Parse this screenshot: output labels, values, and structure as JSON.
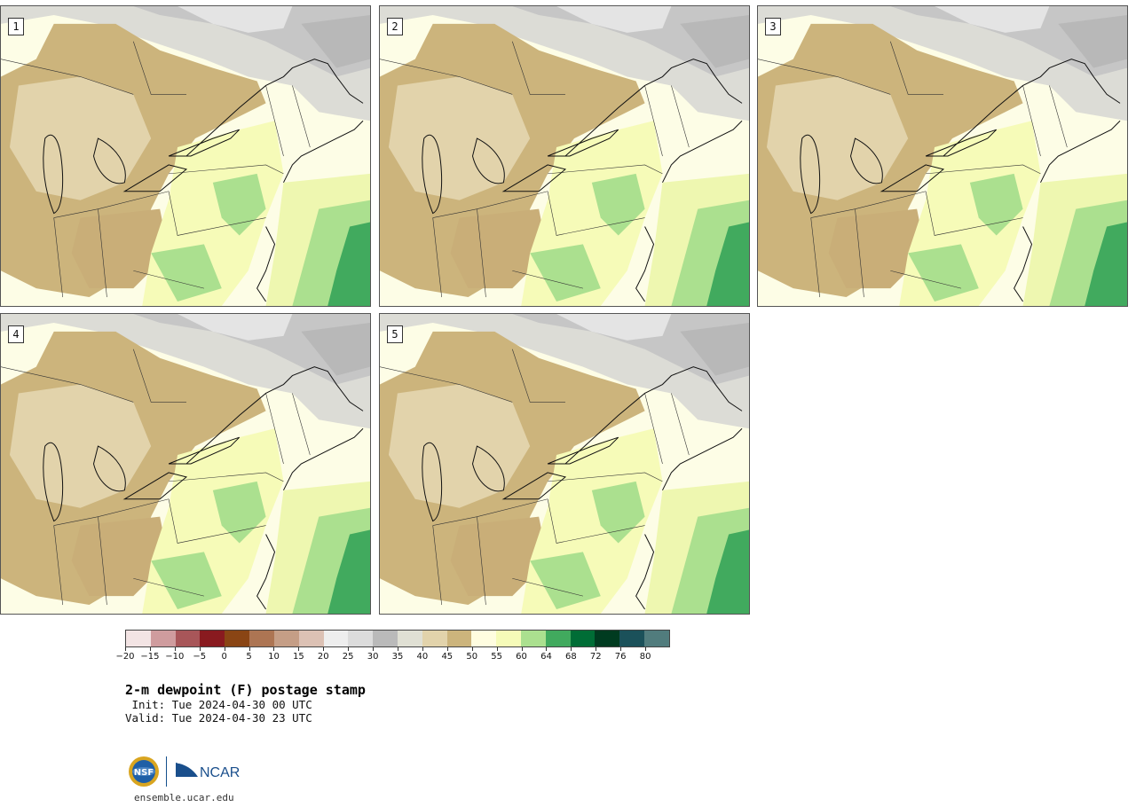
{
  "panels": [
    {
      "label": "1"
    },
    {
      "label": "2"
    },
    {
      "label": "3"
    },
    {
      "label": "4"
    },
    {
      "label": "5"
    }
  ],
  "colorbar": {
    "colors": [
      "#f3e4e4",
      "#cf9c9e",
      "#a85659",
      "#891a1f",
      "#8a4514",
      "#ad7553",
      "#c59e86",
      "#dcc1b4",
      "#eeeeee",
      "#dcdcdc",
      "#bababa",
      "#e0e0d4",
      "#e2d3ab",
      "#ccb47c",
      "#fffde0",
      "#f6fbb8",
      "#abe08f",
      "#41aa5e",
      "#006d36",
      "#003b20",
      "#1b515a",
      "#517c7d"
    ],
    "labels": [
      "−20",
      "−15",
      "−10",
      "−5",
      "0",
      "5",
      "10",
      "15",
      "20",
      "25",
      "30",
      "35",
      "40",
      "45",
      "50",
      "55",
      "60",
      "64",
      "68",
      "72",
      "76",
      "80"
    ],
    "units": "F"
  },
  "title": "2-m dewpoint (F) postage stamp",
  "init": " Init: Tue 2024-04-30 00 UTC",
  "valid": "Valid: Tue 2024-04-30 23 UTC",
  "logos": {
    "nsf": "NSF",
    "ncar": "NCAR"
  },
  "website": "ensemble.ucar.edu"
}
